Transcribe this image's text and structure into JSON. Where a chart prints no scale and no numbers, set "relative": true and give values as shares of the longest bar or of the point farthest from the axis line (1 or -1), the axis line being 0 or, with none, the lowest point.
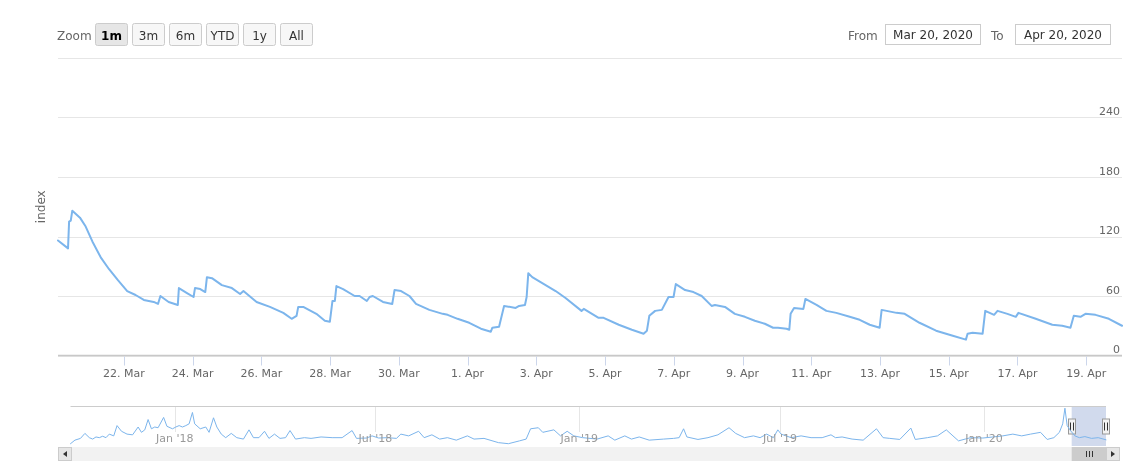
{
  "chart_data": [
    {
      "type": "line",
      "ylabel": "index",
      "x": [
        "2020-03-20T02:00",
        "2020-03-20T09:00",
        "2020-03-20T09:45",
        "2020-03-20T10:55",
        "2020-03-20T12:00",
        "2020-03-20T17:20",
        "2020-03-20T21:20",
        "2020-03-21T02:00",
        "2020-03-21T07:50",
        "2020-03-21T13:40",
        "2020-03-21T19:50",
        "2020-03-22T02:20",
        "2020-03-22T08:10",
        "2020-03-22T13:55",
        "2020-03-22T20:50",
        "2020-03-22T23:50",
        "2020-03-23T01:30",
        "2020-03-23T07:15",
        "2020-03-23T13:40",
        "2020-03-23T14:25",
        "2020-03-23T20:05",
        "2020-03-24T00:40",
        "2020-03-24T01:40",
        "2020-03-24T05:20",
        "2020-03-24T08:50",
        "2020-03-24T10:00",
        "2020-03-24T13:30",
        "2020-03-24T20:25",
        "2020-03-25T03:25",
        "2020-03-25T09:10",
        "2020-03-25T11:30",
        "2020-03-25T20:40",
        "2020-03-26T06:00",
        "2020-03-26T15:20",
        "2020-03-26T21:10",
        "2020-03-27T00:35",
        "2020-03-27T01:45",
        "2020-03-27T05:15",
        "2020-03-27T14:25",
        "2020-03-27T20:20",
        "2020-03-27T23:50",
        "2020-03-28T01:40",
        "2020-03-28T03:20",
        "2020-03-28T04:25",
        "2020-03-28T09:05",
        "2020-03-28T17:10",
        "2020-03-28T20:35",
        "2020-03-29T01:40",
        "2020-03-29T03:35",
        "2020-03-29T05:50",
        "2020-03-29T12:55",
        "2020-03-29T19:25",
        "2020-03-29T21:00",
        "2020-03-30T01:35",
        "2020-03-30T07:25",
        "2020-03-30T12:00",
        "2020-03-30T21:20",
        "2020-03-30T23:40",
        "2020-03-31T06:40",
        "2020-03-31T10:05",
        "2020-03-31T17:00",
        "2020-04-01T01:10",
        "2020-04-01T09:20",
        "2020-04-01T16:15",
        "2020-04-01T17:20",
        "2020-04-01T22:00",
        "2020-04-02T01:30",
        "2020-04-02T09:35",
        "2020-04-02T12:00",
        "2020-04-02T16:05",
        "2020-04-02T17:15",
        "2020-04-02T18:25",
        "2020-04-02T21:10",
        "2020-04-03T03:00",
        "2020-04-03T13:30",
        "2020-04-03T20:25",
        "2020-04-04T07:35",
        "2020-04-04T09:10",
        "2020-04-04T19:30",
        "2020-04-04T23:00",
        "2020-04-05T09:35",
        "2020-04-05T18:45",
        "2020-04-06T02:55",
        "2020-04-06T05:15",
        "2020-04-06T06:55",
        "2020-04-06T11:00",
        "2020-04-06T15:40",
        "2020-04-06T20:20",
        "2020-04-06T23:50",
        "2020-04-07T01:25",
        "2020-04-07T07:55",
        "2020-04-07T13:45",
        "2020-04-07T19:30",
        "2020-04-08T02:25",
        "2020-04-08T04:45",
        "2020-04-08T11:45",
        "2020-04-08T18:40",
        "2020-04-09T01:40",
        "2020-04-09T08:35",
        "2020-04-09T15:35",
        "2020-04-09T21:20",
        "2020-04-10T00:45",
        "2020-04-10T06:45",
        "2020-04-10T08:40",
        "2020-04-10T09:35",
        "2020-04-10T12:00",
        "2020-04-10T18:30",
        "2020-04-10T19:55",
        "2020-04-11T03:40",
        "2020-04-11T10:35",
        "2020-04-11T17:30",
        "2020-04-12T02:50",
        "2020-04-12T09:50",
        "2020-04-12T16:50",
        "2020-04-12T23:45",
        "2020-04-13T01:10",
        "2020-04-13T11:30",
        "2020-04-13T17:15",
        "2020-04-14T03:35",
        "2020-04-14T15:10",
        "2020-04-15T02:50",
        "2020-04-15T12:00",
        "2020-04-15T13:10",
        "2020-04-15T16:40",
        "2020-04-15T23:40",
        "2020-04-16T01:30",
        "2020-04-16T07:40",
        "2020-04-16T10:05",
        "2020-04-16T17:00",
        "2020-04-16T22:50",
        "2020-04-17T00:40",
        "2020-04-17T12:45",
        "2020-04-18T00:20",
        "2020-04-18T07:15",
        "2020-04-18T13:00",
        "2020-04-18T15:20",
        "2020-04-18T20:00",
        "2020-04-18T23:30",
        "2020-04-19T06:30",
        "2020-04-19T15:50",
        "2020-04-20T01:00"
      ],
      "series": [
        {
          "color": "#7cb5ec",
          "values": [
            116,
            108,
            135,
            136,
            146,
            139,
            130,
            115,
            99,
            87,
            76,
            65,
            61,
            56,
            54,
            52,
            60,
            54,
            51,
            68,
            63,
            59,
            68,
            67,
            64,
            79,
            78,
            71,
            68,
            62,
            65,
            54,
            49,
            43,
            37,
            40,
            49,
            49,
            42,
            35,
            34,
            55,
            55,
            70,
            67,
            60,
            60,
            55,
            59,
            60,
            54,
            52,
            66,
            65,
            60,
            52,
            46,
            45,
            42,
            41,
            37,
            33,
            27,
            24,
            28,
            29,
            50,
            48,
            50,
            51,
            59,
            83,
            79,
            74,
            65,
            58,
            45,
            47,
            38,
            38,
            31,
            26,
            22,
            25,
            40,
            45,
            46,
            59,
            59,
            72,
            66,
            64,
            60,
            50,
            51,
            49,
            42,
            39,
            35,
            32,
            28,
            28,
            27,
            26,
            42,
            48,
            47,
            57,
            51,
            45,
            43,
            39,
            36,
            31,
            28,
            46,
            43,
            42,
            33,
            25,
            20,
            16,
            22,
            23,
            22,
            45,
            41,
            45,
            42,
            39,
            43,
            37,
            31,
            30,
            28,
            40,
            39,
            42,
            41,
            37,
            30
          ]
        }
      ],
      "xlim": [
        "2020-03-20T02:00",
        "2020-04-20T01:00"
      ],
      "xticks": [
        {
          "value": "2020-03-22",
          "label": "22. Mar"
        },
        {
          "value": "2020-03-24",
          "label": "24. Mar"
        },
        {
          "value": "2020-03-26",
          "label": "26. Mar"
        },
        {
          "value": "2020-03-28",
          "label": "28. Mar"
        },
        {
          "value": "2020-03-30",
          "label": "30. Mar"
        },
        {
          "value": "2020-04-01",
          "label": "1. Apr"
        },
        {
          "value": "2020-04-03",
          "label": "3. Apr"
        },
        {
          "value": "2020-04-05",
          "label": "5. Apr"
        },
        {
          "value": "2020-04-07",
          "label": "7. Apr"
        },
        {
          "value": "2020-04-09",
          "label": "9. Apr"
        },
        {
          "value": "2020-04-11",
          "label": "11. Apr"
        },
        {
          "value": "2020-04-13",
          "label": "13. Apr"
        },
        {
          "value": "2020-04-15",
          "label": "15. Apr"
        },
        {
          "value": "2020-04-17",
          "label": "17. Apr"
        },
        {
          "value": "2020-04-19",
          "label": "19. Apr"
        }
      ],
      "ylim": [
        0,
        300
      ],
      "yticks": [
        0,
        60,
        120,
        180,
        240,
        {
          "value": 300,
          "label": null
        }
      ],
      "grid": "y",
      "annotations": [
        "Zoom",
        "1m",
        "3m",
        "6m",
        "YTD",
        "1y",
        "All",
        "From",
        "Mar 20, 2020",
        "To",
        "Apr 20, 2020"
      ]
    },
    {
      "type": "line",
      "relative": true,
      "x": [
        "2017-09-29",
        "2017-10-03",
        "2017-10-08",
        "2017-10-12",
        "2017-10-16",
        "2017-10-19",
        "2017-10-22",
        "2017-10-25",
        "2017-10-28",
        "2017-10-31",
        "2017-11-03",
        "2017-11-07",
        "2017-11-10",
        "2017-11-14",
        "2017-11-19",
        "2017-11-24",
        "2017-11-29",
        "2017-12-02",
        "2017-12-05",
        "2017-12-08",
        "2017-12-11",
        "2017-12-14",
        "2017-12-17",
        "2017-12-22",
        "2017-12-25",
        "2017-12-30",
        "2018-01-02",
        "2018-01-05",
        "2018-01-08",
        "2018-01-11",
        "2018-01-14",
        "2018-01-17",
        "2018-01-19",
        "2018-01-24",
        "2018-01-29",
        "2018-02-01",
        "2018-02-05",
        "2018-02-08",
        "2018-02-12",
        "2018-02-16",
        "2018-02-21",
        "2018-02-26",
        "2018-03-04",
        "2018-03-09",
        "2018-03-13",
        "2018-03-18",
        "2018-03-23",
        "2018-03-27",
        "2018-04-01",
        "2018-04-06",
        "2018-04-11",
        "2018-04-15",
        "2018-04-20",
        "2018-04-28",
        "2018-05-04",
        "2018-05-13",
        "2018-05-23",
        "2018-06-01",
        "2018-06-10",
        "2018-06-14",
        "2018-06-23",
        "2018-06-28",
        "2018-07-04",
        "2018-07-12",
        "2018-07-20",
        "2018-07-24",
        "2018-07-31",
        "2018-08-09",
        "2018-08-14",
        "2018-08-21",
        "2018-08-28",
        "2018-09-04",
        "2018-09-12",
        "2018-09-22",
        "2018-09-28",
        "2018-10-07",
        "2018-10-20",
        "2018-10-29",
        "2018-11-08",
        "2018-11-14",
        "2018-11-18",
        "2018-11-25",
        "2018-11-29",
        "2018-12-09",
        "2018-12-15",
        "2018-12-21",
        "2018-12-27",
        "2019-01-04",
        "2019-01-17",
        "2019-01-27",
        "2019-02-02",
        "2019-02-11",
        "2019-02-17",
        "2019-02-24",
        "2019-03-05",
        "2019-03-18",
        "2019-03-27",
        "2019-04-01",
        "2019-04-05",
        "2019-04-08",
        "2019-04-18",
        "2019-04-27",
        "2019-05-06",
        "2019-05-16",
        "2019-05-22",
        "2019-05-30",
        "2019-06-07",
        "2019-06-13",
        "2019-06-19",
        "2019-06-25",
        "2019-06-29",
        "2019-07-02",
        "2019-07-11",
        "2019-07-20",
        "2019-07-29",
        "2019-08-08",
        "2019-08-16",
        "2019-08-20",
        "2019-08-26",
        "2019-09-04",
        "2019-09-14",
        "2019-09-26",
        "2019-10-02",
        "2019-10-08",
        "2019-10-17",
        "2019-10-27",
        "2019-10-31",
        "2019-11-11",
        "2019-11-20",
        "2019-11-28",
        "2019-12-04",
        "2019-12-09",
        "2019-12-15",
        "2019-12-20",
        "2019-12-31",
        "2020-01-09",
        "2020-01-18",
        "2020-01-27",
        "2020-02-04",
        "2020-02-12",
        "2020-02-21",
        "2020-02-27",
        "2020-03-04",
        "2020-03-09",
        "2020-03-12",
        "2020-03-14",
        "2020-03-16",
        "2020-03-19",
        "2020-03-23",
        "2020-03-27",
        "2020-04-01",
        "2020-04-07",
        "2020-04-13",
        "2020-04-20T01:00"
      ],
      "series": [
        {
          "color": "#7cb5ec",
          "values": [
            0,
            0.1,
            0.15,
            0.29,
            0.17,
            0.13,
            0.19,
            0.17,
            0.21,
            0.17,
            0.27,
            0.22,
            0.51,
            0.35,
            0.27,
            0.25,
            0.47,
            0.32,
            0.39,
            0.68,
            0.42,
            0.47,
            0.45,
            0.74,
            0.49,
            0.42,
            0.47,
            0.51,
            0.47,
            0.51,
            0.56,
            0.88,
            0.56,
            0.42,
            0.47,
            0.32,
            0.73,
            0.47,
            0.27,
            0.17,
            0.29,
            0.17,
            0.13,
            0.39,
            0.17,
            0.17,
            0.35,
            0.15,
            0.27,
            0.15,
            0.17,
            0.37,
            0.13,
            0.17,
            0.15,
            0.19,
            0.17,
            0.17,
            0.37,
            0.15,
            0.16,
            0.22,
            0.16,
            0.17,
            0.15,
            0.27,
            0.22,
            0.35,
            0.17,
            0.25,
            0.13,
            0.17,
            0.1,
            0.22,
            0.13,
            0.15,
            0.03,
            0,
            0.08,
            0.13,
            0.42,
            0.45,
            0.32,
            0.39,
            0.22,
            0.35,
            0.22,
            0.17,
            0.13,
            0.22,
            0.1,
            0.22,
            0.13,
            0.19,
            0.1,
            0.13,
            0.15,
            0.17,
            0.42,
            0.19,
            0.12,
            0.17,
            0.25,
            0.45,
            0.29,
            0.17,
            0.22,
            0.17,
            0.27,
            0.17,
            0.39,
            0.27,
            0.17,
            0.22,
            0.17,
            0.17,
            0.25,
            0.17,
            0.19,
            0.13,
            0.1,
            0.42,
            0.17,
            0.15,
            0.12,
            0.44,
            0.12,
            0.17,
            0.22,
            0.39,
            0.22,
            0.08,
            0.13,
            0.17,
            0.16,
            0.19,
            0.22,
            0.27,
            0.22,
            0.27,
            0.32,
            0.12,
            0.17,
            0.32,
            0.56,
            1,
            0.51,
            0.37,
            0.22,
            0.17,
            0.2,
            0.15,
            0.17,
            0.11
          ]
        }
      ],
      "xlim": [
        "2017-09-29",
        "2020-04-20T01:00"
      ],
      "xticks": [
        {
          "value": "2018-01-01",
          "label": "Jan '18"
        },
        {
          "value": "2018-07-01",
          "label": "Jul '18"
        },
        {
          "value": "2019-01-01",
          "label": "Jan '19"
        },
        {
          "value": "2019-07-01",
          "label": "Jul '19"
        },
        {
          "value": "2020-01-01",
          "label": "Jan '20"
        }
      ],
      "grid": "x",
      "bands": [
        {
          "axis": "x",
          "from": "2020-03-20T02:00",
          "to": "2020-04-20T01:00",
          "color": "#d1daed"
        }
      ]
    }
  ]
}
